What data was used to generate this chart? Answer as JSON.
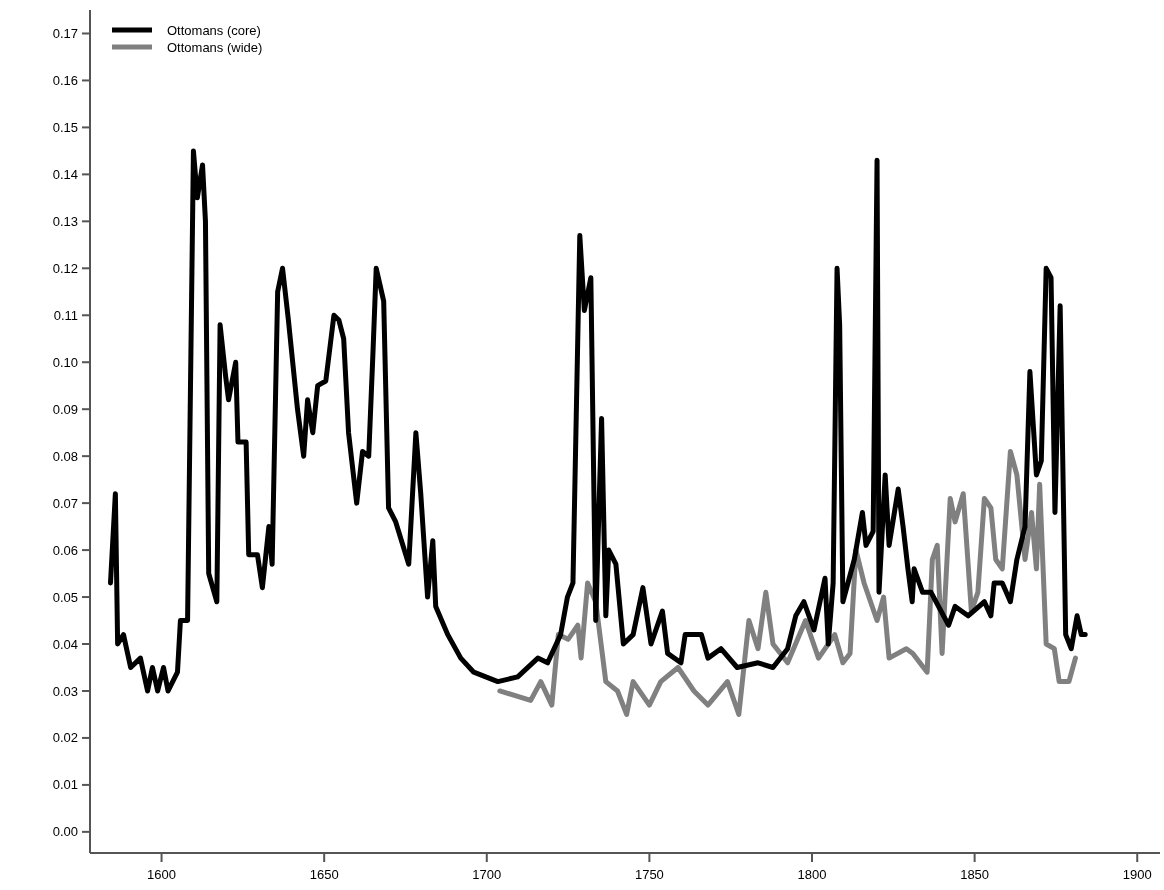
{
  "chart_data": {
    "type": "line",
    "xlim": [
      1578,
      1907
    ],
    "xticks": [
      1600,
      1650,
      1700,
      1750,
      1800,
      1850,
      1900
    ],
    "ylim": [
      -0.0045,
      0.175
    ],
    "yticks": [
      {
        "value": 0,
        "label": "0.00"
      },
      {
        "value": 0.01,
        "label": "0.01"
      },
      {
        "value": 0.02,
        "label": "0.02"
      },
      {
        "value": 0.03,
        "label": "0.03"
      },
      {
        "value": 0.04,
        "label": "0.04"
      },
      {
        "value": 0.05,
        "label": "0.05"
      },
      {
        "value": 0.06,
        "label": "0.06"
      },
      {
        "value": 0.07,
        "label": "0.07"
      },
      {
        "value": 0.08,
        "label": "0.08"
      },
      {
        "value": 0.09,
        "label": "0.09"
      },
      {
        "value": 0.1,
        "label": "0.10"
      },
      {
        "value": 0.11,
        "label": "0.11"
      },
      {
        "value": 0.12,
        "label": "0.12"
      },
      {
        "value": 0.13,
        "label": "0.13"
      },
      {
        "value": 0.14,
        "label": "0.14"
      },
      {
        "value": 0.15,
        "label": "0.15"
      },
      {
        "value": 0.16,
        "label": "0.16"
      },
      {
        "value": 0.17,
        "label": "0.17"
      }
    ],
    "grid": false,
    "legend": "top left",
    "marker": "none",
    "line_style": "solid",
    "series": [
      {
        "name": "Ottomans (wide)",
        "color": "#808080",
        "x": [
          1704,
          1713.5,
          1716.6,
          1720,
          1722,
          1725,
          1728,
          1729,
          1731,
          1733.5,
          1736.6,
          1740.2,
          1743,
          1745,
          1750,
          1753.5,
          1758.8,
          1763.7,
          1768,
          1774,
          1777.5,
          1780.6,
          1783.4,
          1785.8,
          1788,
          1792.5,
          1798,
          1802,
          1807,
          1809.5,
          1811.7,
          1813.5,
          1816,
          1820,
          1822,
          1823.7,
          1829,
          1831,
          1835.4,
          1837,
          1838.5,
          1840,
          1842.5,
          1844,
          1846.5,
          1849,
          1851,
          1853,
          1855,
          1856.5,
          1858.5,
          1861,
          1863,
          1865.5,
          1867.5,
          1869,
          1870,
          1872,
          1874.5,
          1876,
          1879,
          1881
        ],
        "values": [
          0.03,
          0.028,
          0.032,
          0.027,
          0.042,
          0.041,
          0.044,
          0.037,
          0.053,
          0.049,
          0.032,
          0.03,
          0.025,
          0.032,
          0.027,
          0.032,
          0.035,
          0.03,
          0.027,
          0.032,
          0.025,
          0.045,
          0.039,
          0.051,
          0.04,
          0.036,
          0.045,
          0.037,
          0.042,
          0.036,
          0.038,
          0.06,
          0.053,
          0.045,
          0.05,
          0.037,
          0.039,
          0.038,
          0.034,
          0.058,
          0.061,
          0.038,
          0.071,
          0.066,
          0.072,
          0.047,
          0.051,
          0.071,
          0.069,
          0.058,
          0.056,
          0.081,
          0.076,
          0.058,
          0.068,
          0.056,
          0.074,
          0.04,
          0.039,
          0.032,
          0.032,
          0.037
        ]
      },
      {
        "name": "Ottomans (core)",
        "color": "#000000",
        "x": [
          1584.3,
          1585.8,
          1586.5,
          1588.3,
          1590.5,
          1593.5,
          1595.7,
          1597.2,
          1598.8,
          1600.6,
          1602,
          1604.9,
          1605.8,
          1608,
          1609.8,
          1611,
          1612.6,
          1613.5,
          1614.5,
          1617,
          1618,
          1619.7,
          1620.6,
          1622.8,
          1623.5,
          1626,
          1626.8,
          1629.5,
          1631,
          1633,
          1634,
          1635.7,
          1637.2,
          1639,
          1641.8,
          1643.7,
          1644.9,
          1646.5,
          1648,
          1650.5,
          1653,
          1654.5,
          1656,
          1657.5,
          1660,
          1661.8,
          1663.7,
          1665,
          1666,
          1668.3,
          1669.8,
          1672,
          1676,
          1678.2,
          1679.7,
          1681.8,
          1683.4,
          1684.3,
          1688,
          1692,
          1696,
          1703.4,
          1709.5,
          1715.7,
          1718.7,
          1722.7,
          1724.8,
          1726.5,
          1728.6,
          1730,
          1732,
          1733.5,
          1735.3,
          1736.6,
          1737.5,
          1739.7,
          1742,
          1745,
          1748,
          1750.5,
          1754,
          1755.6,
          1759.7,
          1761,
          1766,
          1768,
          1772,
          1777,
          1783.4,
          1788,
          1792.5,
          1795,
          1797.5,
          1800.6,
          1804,
          1805,
          1806.5,
          1807.7,
          1808.5,
          1809.5,
          1813,
          1815.5,
          1816.6,
          1818.8,
          1820,
          1820.6,
          1822.5,
          1823.7,
          1826.5,
          1828,
          1829.5,
          1830.8,
          1831.4,
          1834,
          1836.6,
          1842,
          1844,
          1848,
          1853,
          1855,
          1856,
          1858.5,
          1861,
          1863,
          1865.5,
          1867,
          1869,
          1870.5,
          1872,
          1873.5,
          1874.7,
          1876.3,
          1878,
          1879.7,
          1881.5,
          1882.8,
          1884
        ],
        "values": [
          0.053,
          0.072,
          0.04,
          0.042,
          0.035,
          0.037,
          0.03,
          0.035,
          0.03,
          0.035,
          0.03,
          0.034,
          0.045,
          0.045,
          0.145,
          0.135,
          0.142,
          0.13,
          0.055,
          0.049,
          0.108,
          0.097,
          0.092,
          0.1,
          0.083,
          0.083,
          0.059,
          0.059,
          0.052,
          0.065,
          0.057,
          0.115,
          0.12,
          0.109,
          0.09,
          0.08,
          0.092,
          0.085,
          0.095,
          0.096,
          0.11,
          0.109,
          0.105,
          0.085,
          0.07,
          0.081,
          0.08,
          0.102,
          0.12,
          0.113,
          0.069,
          0.066,
          0.057,
          0.085,
          0.072,
          0.05,
          0.062,
          0.048,
          0.042,
          0.037,
          0.034,
          0.032,
          0.033,
          0.037,
          0.036,
          0.042,
          0.05,
          0.053,
          0.127,
          0.111,
          0.118,
          0.045,
          0.088,
          0.046,
          0.06,
          0.057,
          0.04,
          0.042,
          0.052,
          0.04,
          0.047,
          0.038,
          0.036,
          0.042,
          0.042,
          0.037,
          0.039,
          0.035,
          0.036,
          0.035,
          0.039,
          0.046,
          0.049,
          0.043,
          0.054,
          0.04,
          0.053,
          0.12,
          0.108,
          0.049,
          0.058,
          0.068,
          0.061,
          0.064,
          0.143,
          0.051,
          0.076,
          0.061,
          0.073,
          0.065,
          0.056,
          0.049,
          0.056,
          0.051,
          0.051,
          0.044,
          0.048,
          0.046,
          0.049,
          0.046,
          0.053,
          0.053,
          0.049,
          0.058,
          0.065,
          0.098,
          0.076,
          0.079,
          0.12,
          0.118,
          0.068,
          0.112,
          0.042,
          0.039,
          0.046,
          0.042,
          0.042
        ]
      }
    ]
  }
}
